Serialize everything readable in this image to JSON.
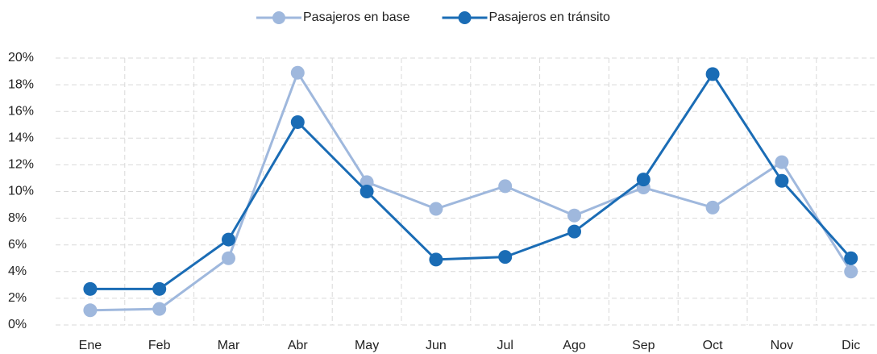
{
  "chart_data": {
    "type": "line",
    "categories": [
      "Ene",
      "Feb",
      "Mar",
      "Abr",
      "May",
      "Jun",
      "Jul",
      "Ago",
      "Sep",
      "Oct",
      "Nov",
      "Dic"
    ],
    "series": [
      {
        "name": "Pasajeros en base",
        "color": "#9fb8dd",
        "values": [
          1.1,
          1.2,
          5.0,
          18.9,
          10.7,
          8.7,
          10.4,
          8.2,
          10.3,
          8.8,
          12.2,
          4.0
        ]
      },
      {
        "name": "Pasajeros en tránsito",
        "color": "#1a6cb5",
        "values": [
          2.7,
          2.7,
          6.4,
          15.2,
          10.0,
          4.9,
          5.1,
          7.0,
          10.9,
          18.8,
          10.8,
          5.0
        ]
      }
    ],
    "ylim": [
      0,
      20
    ],
    "yticks": [
      {
        "value": 0,
        "label": "0%"
      },
      {
        "value": 2,
        "label": "2%"
      },
      {
        "value": 4,
        "label": "4%"
      },
      {
        "value": 6,
        "label": "6%"
      },
      {
        "value": 8,
        "label": "8%"
      },
      {
        "value": 10,
        "label": "10%"
      },
      {
        "value": 12,
        "label": "12%"
      },
      {
        "value": 14,
        "label": "14%"
      },
      {
        "value": 16,
        "label": "16%"
      },
      {
        "value": 18,
        "label": "18%"
      },
      {
        "value": 20,
        "label": "20%"
      }
    ],
    "grid": true,
    "legend": "top"
  }
}
